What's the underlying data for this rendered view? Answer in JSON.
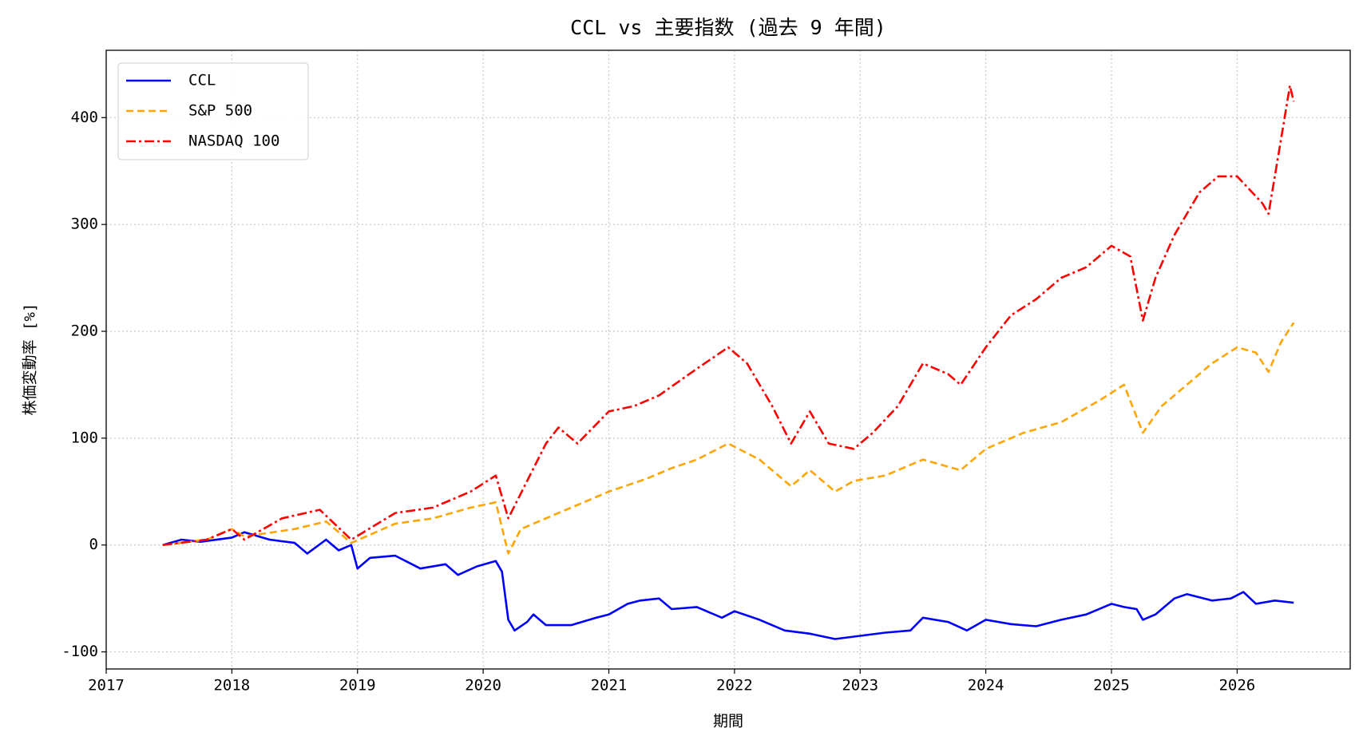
{
  "chart_data": {
    "type": "line",
    "title": "CCL vs 主要指数 (過去 9 年間)",
    "xlabel": "期間",
    "ylabel": "株価変動率 [%]",
    "xlim": [
      2017,
      2026.9
    ],
    "xticks": [
      2017,
      2018,
      2019,
      2020,
      2021,
      2022,
      2023,
      2024,
      2025,
      2026
    ],
    "ylim": [
      -116,
      463
    ],
    "yticks": [
      -100,
      0,
      100,
      200,
      300,
      400
    ],
    "grid": true,
    "legend": "upper-left",
    "series": [
      {
        "name": "CCL",
        "color": "#0000ff",
        "style": "solid",
        "x": [
          2017.45,
          2017.6,
          2017.75,
          2018.0,
          2018.1,
          2018.3,
          2018.5,
          2018.6,
          2018.75,
          2018.85,
          2018.95,
          2019.0,
          2019.1,
          2019.3,
          2019.5,
          2019.7,
          2019.8,
          2019.95,
          2020.1,
          2020.15,
          2020.2,
          2020.25,
          2020.35,
          2020.4,
          2020.5,
          2020.7,
          2020.9,
          2021.0,
          2021.15,
          2021.25,
          2021.4,
          2021.5,
          2021.7,
          2021.9,
          2022.0,
          2022.2,
          2022.4,
          2022.6,
          2022.8,
          2023.0,
          2023.2,
          2023.4,
          2023.5,
          2023.7,
          2023.85,
          2024.0,
          2024.2,
          2024.4,
          2024.6,
          2024.8,
          2025.0,
          2025.1,
          2025.2,
          2025.25,
          2025.35,
          2025.5,
          2025.6,
          2025.8,
          2025.95,
          2026.05,
          2026.15,
          2026.3,
          2026.45
        ],
        "values": [
          0,
          5,
          3,
          7,
          12,
          5,
          2,
          -8,
          5,
          -5,
          0,
          -22,
          -12,
          -10,
          -22,
          -18,
          -28,
          -20,
          -15,
          -25,
          -70,
          -80,
          -72,
          -65,
          -75,
          -75,
          -68,
          -65,
          -55,
          -52,
          -50,
          -60,
          -58,
          -68,
          -62,
          -70,
          -80,
          -83,
          -88,
          -85,
          -82,
          -80,
          -68,
          -72,
          -80,
          -70,
          -74,
          -76,
          -70,
          -65,
          -55,
          -58,
          -60,
          -70,
          -65,
          -50,
          -46,
          -52,
          -50,
          -44,
          -55,
          -52,
          -54
        ]
      },
      {
        "name": "S&P 500",
        "color": "#ffa500",
        "style": "dashed",
        "x": [
          2017.45,
          2017.8,
          2018.0,
          2018.1,
          2018.5,
          2018.75,
          2018.95,
          2019.3,
          2019.6,
          2019.9,
          2020.1,
          2020.2,
          2020.3,
          2020.5,
          2020.7,
          2020.9,
          2021.0,
          2021.3,
          2021.5,
          2021.7,
          2021.95,
          2022.2,
          2022.45,
          2022.6,
          2022.8,
          2022.95,
          2023.2,
          2023.5,
          2023.8,
          2024.0,
          2024.3,
          2024.6,
          2024.9,
          2025.1,
          2025.25,
          2025.4,
          2025.6,
          2025.8,
          2026.0,
          2026.15,
          2026.25,
          2026.35,
          2026.45
        ],
        "values": [
          0,
          5,
          15,
          8,
          15,
          22,
          2,
          20,
          25,
          35,
          40,
          -8,
          15,
          25,
          35,
          45,
          50,
          62,
          72,
          80,
          95,
          80,
          55,
          70,
          50,
          60,
          65,
          80,
          70,
          90,
          105,
          115,
          135,
          150,
          105,
          130,
          150,
          170,
          185,
          180,
          162,
          190,
          208
        ]
      },
      {
        "name": "NASDAQ 100",
        "color": "#ff0000",
        "style": "dashdot",
        "x": [
          2017.45,
          2017.8,
          2018.0,
          2018.1,
          2018.4,
          2018.7,
          2018.95,
          2019.3,
          2019.6,
          2019.9,
          2020.1,
          2020.2,
          2020.35,
          2020.5,
          2020.6,
          2020.75,
          2021.0,
          2021.2,
          2021.4,
          2021.7,
          2021.95,
          2022.1,
          2022.3,
          2022.45,
          2022.6,
          2022.75,
          2022.95,
          2023.1,
          2023.3,
          2023.5,
          2023.7,
          2023.8,
          2024.0,
          2024.2,
          2024.4,
          2024.6,
          2024.8,
          2025.0,
          2025.15,
          2025.25,
          2025.35,
          2025.5,
          2025.7,
          2025.85,
          2026.0,
          2026.2,
          2026.25,
          2026.35,
          2026.42,
          2026.45
        ],
        "values": [
          0,
          5,
          15,
          5,
          25,
          33,
          5,
          30,
          35,
          50,
          65,
          25,
          60,
          95,
          110,
          95,
          125,
          130,
          140,
          165,
          185,
          170,
          130,
          95,
          125,
          95,
          90,
          105,
          130,
          170,
          160,
          150,
          185,
          215,
          230,
          250,
          260,
          280,
          270,
          210,
          250,
          290,
          330,
          345,
          345,
          320,
          310,
          380,
          430,
          415
        ]
      }
    ]
  }
}
